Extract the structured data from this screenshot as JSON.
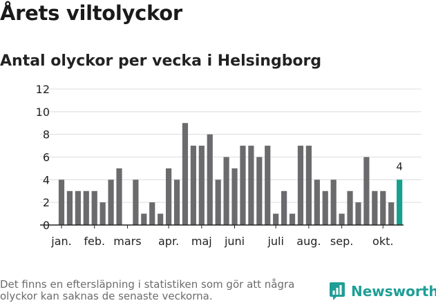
{
  "header": {
    "title": "Årets viltolyckor",
    "subtitle": "Antal olyckor per vecka i Helsingborg"
  },
  "chart_data": {
    "type": "bar",
    "title": "",
    "xlabel": "",
    "ylabel": "",
    "ylim": [
      0,
      12
    ],
    "yticks": [
      0,
      2,
      4,
      6,
      8,
      10,
      12
    ],
    "grid": true,
    "weeks": [
      1,
      2,
      3,
      4,
      5,
      6,
      7,
      8,
      9,
      10,
      11,
      12,
      13,
      14,
      15,
      16,
      17,
      18,
      19,
      20,
      21,
      22,
      23,
      24,
      25,
      26,
      27,
      28,
      29,
      30,
      31,
      32,
      33,
      34,
      35,
      36,
      37,
      38,
      39,
      40,
      41,
      42
    ],
    "values": [
      4,
      3,
      3,
      3,
      3,
      2,
      4,
      5,
      0,
      4,
      1,
      2,
      1,
      5,
      4,
      9,
      7,
      7,
      8,
      4,
      6,
      5,
      7,
      7,
      6,
      7,
      1,
      3,
      1,
      7,
      7,
      4,
      3,
      4,
      1,
      3,
      2,
      6,
      3,
      3,
      2,
      4
    ],
    "x_tick_labels": [
      {
        "label": "jan.",
        "week": 1
      },
      {
        "label": "feb.",
        "week": 5
      },
      {
        "label": "mars",
        "week": 9
      },
      {
        "label": "apr.",
        "week": 14
      },
      {
        "label": "maj",
        "week": 18
      },
      {
        "label": "juni",
        "week": 22
      },
      {
        "label": "juli",
        "week": 27
      },
      {
        "label": "aug.",
        "week": 31
      },
      {
        "label": "sep.",
        "week": 35
      },
      {
        "label": "okt.",
        "week": 40
      }
    ],
    "bar_color": "#6b6b6e",
    "highlight_color": "#16a08f",
    "highlight_week": 42,
    "highlight_label": "4"
  },
  "footer": {
    "note": "Det finns en eftersläpning i statistiken som gör att några olyckor kan saknas de senaste veckorna.",
    "brand": "Newsworthy",
    "brand_icon": "newsworthy-logo-icon",
    "brand_color": "#1f9e96"
  }
}
